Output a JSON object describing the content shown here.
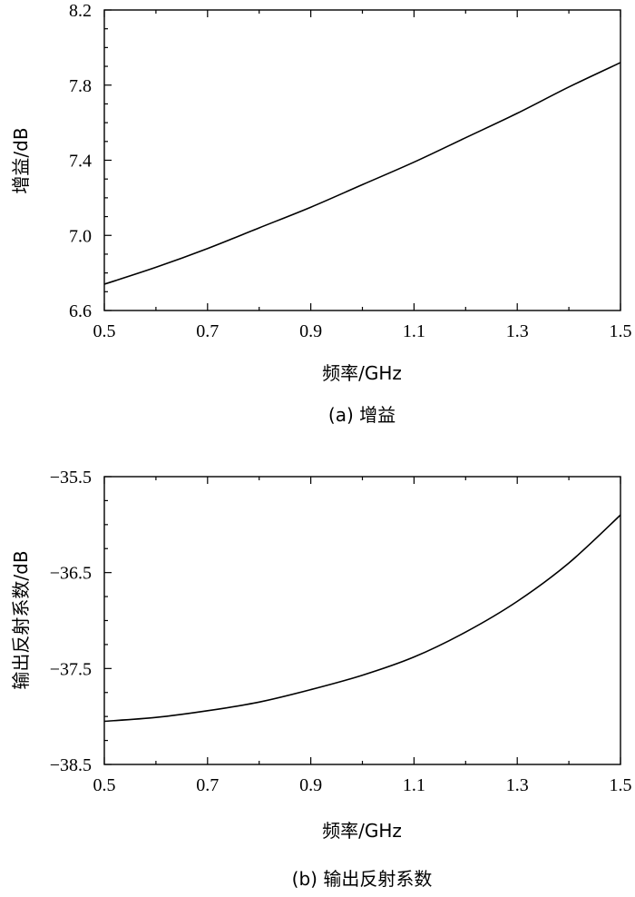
{
  "chart_data": [
    {
      "type": "line",
      "caption": "(a) 增益",
      "xlabel": "频率/GHz",
      "ylabel": "增益/dB",
      "xlim": [
        0.5,
        1.5
      ],
      "ylim": [
        6.6,
        8.2
      ],
      "xticks": [
        "0.5",
        "0.7",
        "0.9",
        "1.1",
        "1.3",
        "1.5"
      ],
      "yticks": [
        "6.6",
        "7.0",
        "7.4",
        "7.8",
        "8.2"
      ],
      "grid": false,
      "legend": "none",
      "series": [
        {
          "x": [
            0.5,
            0.6,
            0.7,
            0.8,
            0.9,
            1.0,
            1.1,
            1.2,
            1.3,
            1.4,
            1.5
          ],
          "values": [
            6.74,
            6.83,
            6.93,
            7.04,
            7.15,
            7.27,
            7.39,
            7.52,
            7.65,
            7.79,
            7.92
          ]
        }
      ]
    },
    {
      "type": "line",
      "caption": "(b) 输出反射系数",
      "xlabel": "频率/GHz",
      "ylabel": "输出反射系数/dB",
      "xlim": [
        0.5,
        1.5
      ],
      "ylim": [
        -38.5,
        -35.5
      ],
      "xticks": [
        "0.5",
        "0.7",
        "0.9",
        "1.1",
        "1.3",
        "1.5"
      ],
      "yticks": [
        "−38.5",
        "−37.5",
        "−36.5",
        "−35.5"
      ],
      "grid": false,
      "legend": "none",
      "series": [
        {
          "x": [
            0.5,
            0.6,
            0.7,
            0.8,
            0.9,
            1.0,
            1.1,
            1.2,
            1.3,
            1.4,
            1.5
          ],
          "values": [
            -38.05,
            -38.01,
            -37.94,
            -37.85,
            -37.72,
            -37.57,
            -37.38,
            -37.12,
            -36.8,
            -36.4,
            -35.9
          ]
        }
      ]
    }
  ]
}
